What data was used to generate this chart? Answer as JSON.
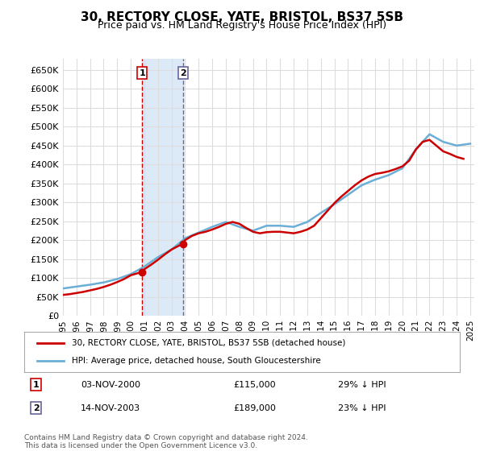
{
  "title": "30, RECTORY CLOSE, YATE, BRISTOL, BS37 5SB",
  "subtitle": "Price paid vs. HM Land Registry's House Price Index (HPI)",
  "hpi_label": "HPI: Average price, detached house, South Gloucestershire",
  "property_label": "30, RECTORY CLOSE, YATE, BRISTOL, BS37 5SB (detached house)",
  "sale1_date": "03-NOV-2000",
  "sale1_price": 115000,
  "sale1_pct": "29% ↓ HPI",
  "sale2_date": "14-NOV-2003",
  "sale2_price": 189000,
  "sale2_pct": "23% ↓ HPI",
  "footer": "Contains HM Land Registry data © Crown copyright and database right 2024.\nThis data is licensed under the Open Government Licence v3.0.",
  "hpi_color": "#6baed6",
  "property_color": "#cc0000",
  "background_color": "#ffffff",
  "grid_color": "#dddddd",
  "sale1_vline_color": "#cc0000",
  "sale2_vline_color": "#666699",
  "highlight_color": "#dce9f7",
  "ylim": [
    0,
    680000
  ],
  "yticks": [
    0,
    50000,
    100000,
    150000,
    200000,
    250000,
    300000,
    350000,
    400000,
    450000,
    500000,
    550000,
    600000,
    650000
  ],
  "hpi_years": [
    1995,
    1996,
    1997,
    1998,
    1999,
    2000,
    2001,
    2002,
    2003,
    2004,
    2005,
    2006,
    2007,
    2008,
    2009,
    2010,
    2011,
    2012,
    2013,
    2014,
    2015,
    2016,
    2017,
    2018,
    2019,
    2020,
    2021,
    2022,
    2023,
    2024,
    2025
  ],
  "hpi_values": [
    72000,
    77000,
    82000,
    88000,
    97000,
    110000,
    130000,
    155000,
    175000,
    205000,
    220000,
    235000,
    248000,
    235000,
    225000,
    238000,
    238000,
    235000,
    248000,
    272000,
    295000,
    320000,
    345000,
    360000,
    372000,
    390000,
    440000,
    480000,
    460000,
    450000,
    455000
  ],
  "property_years": [
    1995.0,
    1995.5,
    1996.0,
    1996.5,
    1997.0,
    1997.5,
    1998.0,
    1998.5,
    1999.0,
    1999.5,
    2000.0,
    2000.75,
    2001.0,
    2001.5,
    2002.0,
    2002.5,
    2003.0,
    2003.75,
    2004.0,
    2004.5,
    2005.0,
    2005.5,
    2006.0,
    2006.5,
    2007.0,
    2007.5,
    2008.0,
    2008.5,
    2009.0,
    2009.5,
    2010.0,
    2010.5,
    2011.0,
    2011.5,
    2012.0,
    2012.5,
    2013.0,
    2013.5,
    2014.0,
    2014.5,
    2015.0,
    2015.5,
    2016.0,
    2016.5,
    2017.0,
    2017.5,
    2018.0,
    2018.5,
    2019.0,
    2019.5,
    2020.0,
    2020.5,
    2021.0,
    2021.5,
    2022.0,
    2022.5,
    2023.0,
    2023.5,
    2024.0,
    2024.5
  ],
  "property_values": [
    55000,
    57000,
    60000,
    63000,
    67000,
    71000,
    76000,
    82000,
    89000,
    97000,
    107000,
    115000,
    123000,
    135000,
    148000,
    162000,
    175000,
    189000,
    200000,
    211000,
    218000,
    222000,
    228000,
    235000,
    243000,
    248000,
    243000,
    232000,
    222000,
    218000,
    221000,
    222000,
    222000,
    220000,
    218000,
    222000,
    228000,
    238000,
    258000,
    278000,
    298000,
    315000,
    330000,
    345000,
    358000,
    368000,
    375000,
    378000,
    382000,
    388000,
    395000,
    410000,
    440000,
    460000,
    465000,
    450000,
    435000,
    428000,
    420000,
    415000
  ],
  "sale1_x": 2000.84,
  "sale2_x": 2003.87,
  "xlim_left": 1995.0,
  "xlim_right": 2025.3,
  "xticks": [
    1995,
    1996,
    1997,
    1998,
    1999,
    2000,
    2001,
    2002,
    2003,
    2004,
    2005,
    2006,
    2007,
    2008,
    2009,
    2010,
    2011,
    2012,
    2013,
    2014,
    2015,
    2016,
    2017,
    2018,
    2019,
    2020,
    2021,
    2022,
    2023,
    2024,
    2025
  ]
}
